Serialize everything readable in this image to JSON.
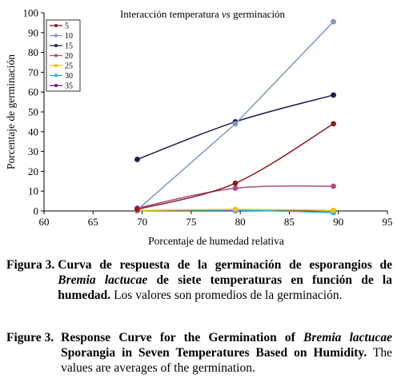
{
  "chart_data": {
    "type": "line",
    "title": "Interacción temperatura vs germinación",
    "title_parts": {
      "pre": "Interacción temperatura ",
      "italic": "vs",
      "post": " germinación"
    },
    "xlabel": "Porcentaje de humedad relativa",
    "ylabel": "Porcentaje de germinación",
    "xlim": [
      60,
      95
    ],
    "ylim": [
      0,
      100
    ],
    "xticks": [
      60,
      65,
      70,
      75,
      80,
      85,
      90,
      95
    ],
    "yticks": [
      0,
      10,
      20,
      30,
      40,
      50,
      60,
      70,
      80,
      90,
      100
    ],
    "legend_position": "top-left",
    "grid": false,
    "x": [
      69.5,
      79.5,
      89.5
    ],
    "series": [
      {
        "name": "5",
        "color": "#8b1a1a",
        "values": [
          0.8,
          14,
          44
        ],
        "smooth": true
      },
      {
        "name": "10",
        "color": "#7f95c0",
        "values": [
          0.5,
          44,
          95.5
        ],
        "smooth": false
      },
      {
        "name": "15",
        "color": "#1a1f4a",
        "values": [
          26,
          45,
          58.5
        ],
        "smooth": true
      },
      {
        "name": "20",
        "color": "#b04a8a",
        "values": [
          1.5,
          11.5,
          12.5
        ],
        "smooth": true
      },
      {
        "name": "25",
        "color": "#f2c200",
        "values": [
          0.3,
          0.8,
          0.3
        ],
        "smooth": true
      },
      {
        "name": "30",
        "color": "#23b3d8",
        "values": [
          0.2,
          0.4,
          -0.8
        ],
        "smooth": true
      },
      {
        "name": "35",
        "color": "#5a1a6a",
        "values": [
          0.1,
          0.2,
          0.2
        ],
        "smooth": true
      }
    ]
  },
  "caption_es": {
    "label": "Figura 3.",
    "bold_1": "Curva de respuesta de la germinación de esporangios de ",
    "italic": "Bremia lactucae",
    "bold_2": " de siete temperaturas en función de la humedad.",
    "normal": " Los valores son promedios de la germinación."
  },
  "caption_en": {
    "label": "Figure 3.",
    "bold_1": "Response Curve for the Germination of ",
    "italic": "Bremia lactucae",
    "bold_2": " Sporangia in Seven Temperatures Based on Humidity.",
    "normal": " The values are averages of the germination."
  }
}
